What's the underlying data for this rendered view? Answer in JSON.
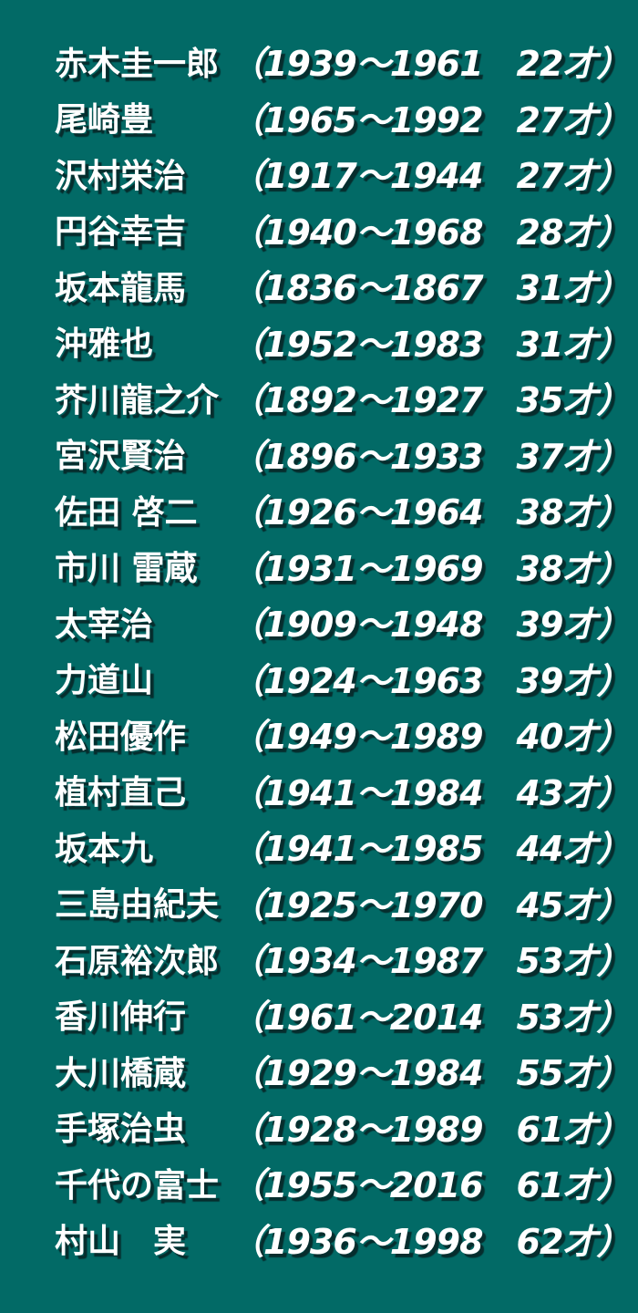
{
  "theme": {
    "background_color": "#026A66",
    "text_color": "#FFFFFF",
    "shadow_color": "#072426"
  },
  "list": {
    "items": [
      {
        "name": "赤木圭一郎",
        "dates": "（1939～1961　22才）",
        "born": 1939,
        "died": 1961,
        "age": "22才"
      },
      {
        "name": "尾崎豊",
        "dates": "（1965～1992　27才）",
        "born": 1965,
        "died": 1992,
        "age": "27才"
      },
      {
        "name": "沢村栄治",
        "dates": "（1917～1944　27才）",
        "born": 1917,
        "died": 1944,
        "age": "27才"
      },
      {
        "name": "円谷幸吉",
        "dates": "（1940～1968　28才）",
        "born": 1940,
        "died": 1968,
        "age": "28才"
      },
      {
        "name": "坂本龍馬",
        "dates": "（1836～1867　31才）",
        "born": 1836,
        "died": 1867,
        "age": "31才"
      },
      {
        "name": "沖雅也",
        "dates": "（1952～1983　31才）",
        "born": 1952,
        "died": 1983,
        "age": "31才"
      },
      {
        "name": "芥川龍之介",
        "dates": "（1892～1927　35才）",
        "born": 1892,
        "died": 1927,
        "age": "35才"
      },
      {
        "name": "宮沢賢治",
        "dates": "（1896～1933　37才）",
        "born": 1896,
        "died": 1933,
        "age": "37才"
      },
      {
        "name": "佐田 啓二",
        "dates": "（1926～1964　38才）",
        "born": 1926,
        "died": 1964,
        "age": "38才"
      },
      {
        "name": "市川 雷蔵",
        "dates": "（1931～1969　38才）",
        "born": 1931,
        "died": 1969,
        "age": "38才"
      },
      {
        "name": "太宰治",
        "dates": "（1909～1948　39才）",
        "born": 1909,
        "died": 1948,
        "age": "39才"
      },
      {
        "name": "力道山",
        "dates": "（1924～1963　39才）",
        "born": 1924,
        "died": 1963,
        "age": "39才"
      },
      {
        "name": "松田優作",
        "dates": "（1949～1989　40才）",
        "born": 1949,
        "died": 1989,
        "age": "40才"
      },
      {
        "name": "植村直己",
        "dates": "（1941～1984　43才）",
        "born": 1941,
        "died": 1984,
        "age": "43才"
      },
      {
        "name": "坂本九",
        "dates": "（1941～1985　44才）",
        "born": 1941,
        "died": 1985,
        "age": "44才"
      },
      {
        "name": "三島由紀夫",
        "dates": "（1925～1970　45才）",
        "born": 1925,
        "died": 1970,
        "age": "45才"
      },
      {
        "name": "石原裕次郎",
        "dates": "（1934～1987　53才）",
        "born": 1934,
        "died": 1987,
        "age": "53才"
      },
      {
        "name": "香川伸行",
        "dates": "（1961～2014　53才）",
        "born": 1961,
        "died": 2014,
        "age": "53才"
      },
      {
        "name": "大川橋蔵",
        "dates": "（1929～1984　55才）",
        "born": 1929,
        "died": 1984,
        "age": "55才"
      },
      {
        "name": "手塚治虫",
        "dates": "（1928～1989　61才）",
        "born": 1928,
        "died": 1989,
        "age": "61才"
      },
      {
        "name": "千代の富士",
        "dates": "（1955～2016　61才）",
        "born": 1955,
        "died": 2016,
        "age": "61才"
      },
      {
        "name": "村山　実",
        "dates": "（1936～1998　62才）",
        "born": 1936,
        "died": 1998,
        "age": "62才"
      }
    ]
  }
}
